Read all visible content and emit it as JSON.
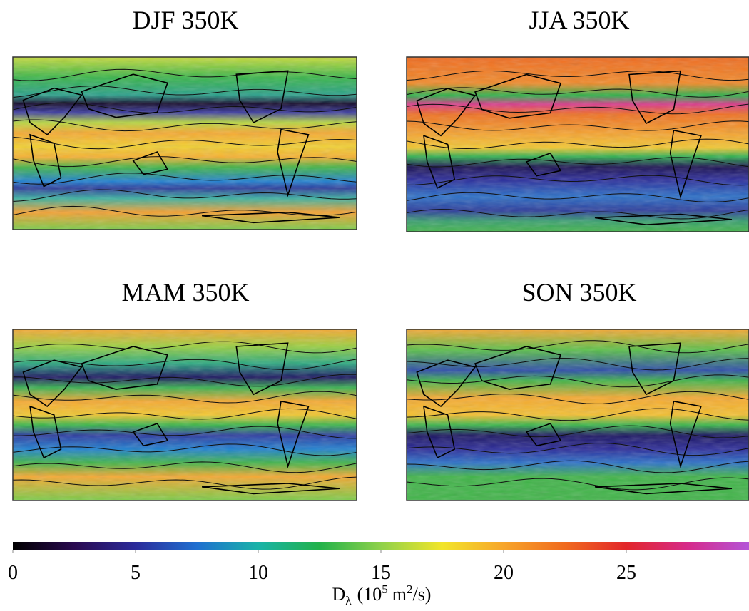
{
  "chart_data": {
    "type": "map",
    "panels": [
      {
        "title": "DJF 350K"
      },
      {
        "title": "JJA 350K"
      },
      {
        "title": "MAM 350K"
      },
      {
        "title": "SON 350K"
      }
    ],
    "colorbar": {
      "lim": [
        0,
        30
      ],
      "ticks": [
        0,
        5,
        10,
        15,
        20,
        25
      ],
      "colormap": [
        "#000000",
        "#2a0a50",
        "#2b2b9a",
        "#1f6fd0",
        "#19b3a8",
        "#22b24a",
        "#8fd14a",
        "#f2e52a",
        "#f7a52a",
        "#f06a1e",
        "#e2262a",
        "#d62a8a",
        "#b455d8"
      ],
      "label": {
        "symbol": "D",
        "subscript": "λ",
        "open": "(10",
        "exponent": "5",
        "unit": "m",
        "unit_exponent": "2",
        "close": "/s)"
      }
    }
  }
}
